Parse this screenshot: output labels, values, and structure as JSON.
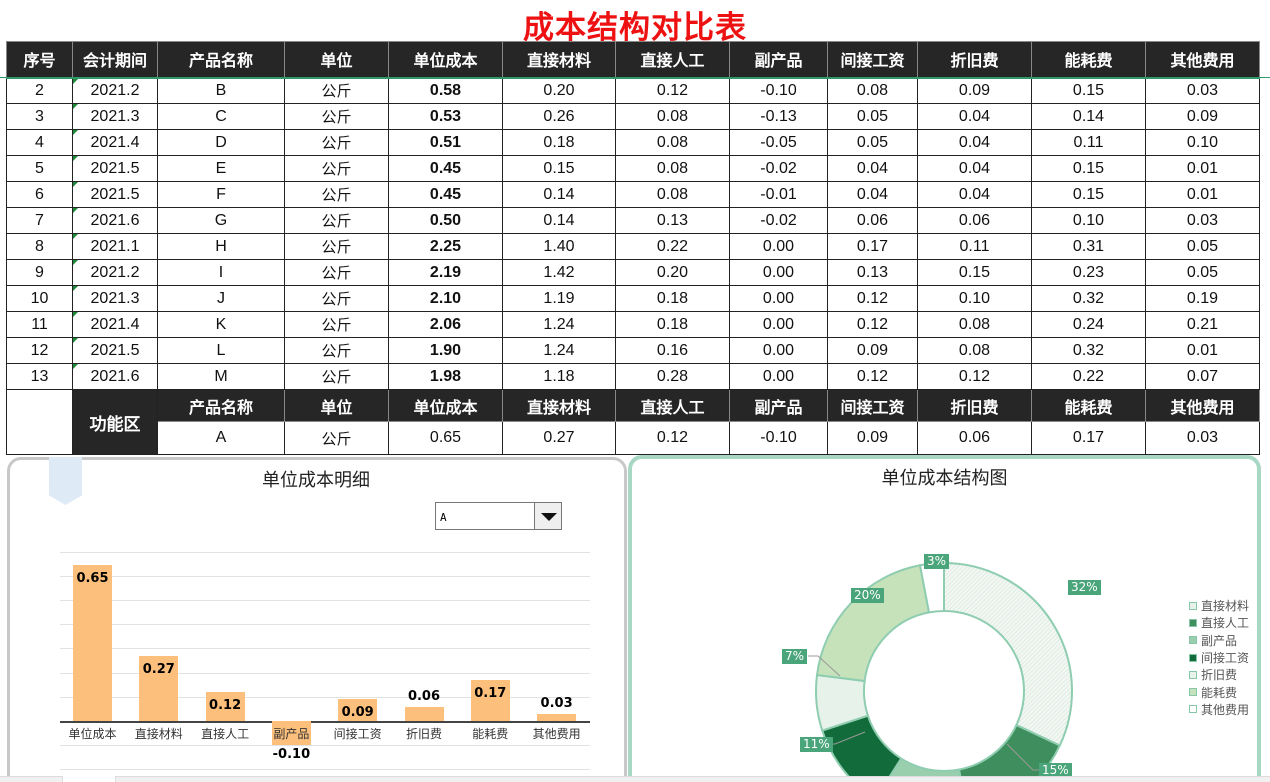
{
  "title": "成本结构对比表",
  "table": {
    "headers": [
      "序号",
      "会计期间",
      "产品名称",
      "单位",
      "单位成本",
      "直接材料",
      "直接人工",
      "副产品",
      "间接工资",
      "折旧费",
      "能耗费",
      "其他费用"
    ],
    "rows": [
      [
        "2",
        "2021.2",
        "B",
        "公斤",
        "0.58",
        "0.20",
        "0.12",
        "-0.10",
        "0.08",
        "0.09",
        "0.15",
        "0.03"
      ],
      [
        "3",
        "2021.3",
        "C",
        "公斤",
        "0.53",
        "0.26",
        "0.08",
        "-0.13",
        "0.05",
        "0.04",
        "0.14",
        "0.09"
      ],
      [
        "4",
        "2021.4",
        "D",
        "公斤",
        "0.51",
        "0.18",
        "0.08",
        "-0.05",
        "0.05",
        "0.04",
        "0.11",
        "0.10"
      ],
      [
        "5",
        "2021.5",
        "E",
        "公斤",
        "0.45",
        "0.15",
        "0.08",
        "-0.02",
        "0.04",
        "0.04",
        "0.15",
        "0.01"
      ],
      [
        "6",
        "2021.5",
        "F",
        "公斤",
        "0.45",
        "0.14",
        "0.08",
        "-0.01",
        "0.04",
        "0.04",
        "0.15",
        "0.01"
      ],
      [
        "7",
        "2021.6",
        "G",
        "公斤",
        "0.50",
        "0.14",
        "0.13",
        "-0.02",
        "0.06",
        "0.06",
        "0.10",
        "0.03"
      ],
      [
        "8",
        "2021.1",
        "H",
        "公斤",
        "2.25",
        "1.40",
        "0.22",
        "0.00",
        "0.17",
        "0.11",
        "0.31",
        "0.05"
      ],
      [
        "9",
        "2021.2",
        "I",
        "公斤",
        "2.19",
        "1.42",
        "0.20",
        "0.00",
        "0.13",
        "0.15",
        "0.23",
        "0.05"
      ],
      [
        "10",
        "2021.3",
        "J",
        "公斤",
        "2.10",
        "1.19",
        "0.18",
        "0.00",
        "0.12",
        "0.10",
        "0.32",
        "0.19"
      ],
      [
        "11",
        "2021.4",
        "K",
        "公斤",
        "2.06",
        "1.24",
        "0.18",
        "0.00",
        "0.12",
        "0.08",
        "0.24",
        "0.21"
      ],
      [
        "12",
        "2021.5",
        "L",
        "公斤",
        "1.90",
        "1.24",
        "0.16",
        "0.00",
        "0.09",
        "0.08",
        "0.32",
        "0.01"
      ],
      [
        "13",
        "2021.6",
        "M",
        "公斤",
        "1.98",
        "1.18",
        "0.28",
        "0.00",
        "0.12",
        "0.12",
        "0.22",
        "0.07"
      ]
    ]
  },
  "function_area": {
    "label": "功能区",
    "headers": [
      "产品名称",
      "单位",
      "单位成本",
      "直接材料",
      "直接人工",
      "副产品",
      "间接工资",
      "折旧费",
      "能耗费",
      "其他费用"
    ],
    "values": [
      "A",
      "公斤",
      "0.65",
      "0.27",
      "0.12",
      "-0.10",
      "0.09",
      "0.06",
      "0.17",
      "0.03"
    ]
  },
  "bar_panel": {
    "title": "单位成本明细",
    "dropdown_value": "A"
  },
  "donut_panel": {
    "title": "单位成本结构图",
    "legend": [
      "直接材料",
      "直接人工",
      "副产品",
      "间接工资",
      "折旧费",
      "能耗费",
      "其他费用"
    ],
    "labels": [
      "32%",
      "15%",
      "11%",
      "7%",
      "20%",
      "3%"
    ]
  },
  "colors": {
    "title": "#ee1111",
    "header_bg": "#262626",
    "bar": "#fdc07c",
    "accent_green": "#4aa57a",
    "panel_border_green": "#a8d8c4"
  },
  "chart_data": [
    {
      "type": "bar",
      "title": "单位成本明细",
      "categories": [
        "单位成本",
        "直接材料",
        "直接人工",
        "副产品",
        "间接工资",
        "折旧费",
        "能耗费",
        "其他费用"
      ],
      "values": [
        0.65,
        0.27,
        0.12,
        -0.1,
        0.09,
        0.06,
        0.17,
        0.03
      ],
      "xlabel": "",
      "ylabel": "",
      "grid": true
    },
    {
      "type": "pie",
      "subtype": "donut",
      "title": "单位成本结构图",
      "categories": [
        "直接材料",
        "直接人工",
        "副产品",
        "间接工资",
        "折旧费",
        "能耗费",
        "其他费用"
      ],
      "values": [
        32,
        15,
        12,
        11,
        7,
        20,
        3
      ],
      "value_labels": [
        "32%",
        "15%",
        "",
        "11%",
        "7%",
        "20%",
        "3%"
      ],
      "legend_position": "right"
    }
  ]
}
